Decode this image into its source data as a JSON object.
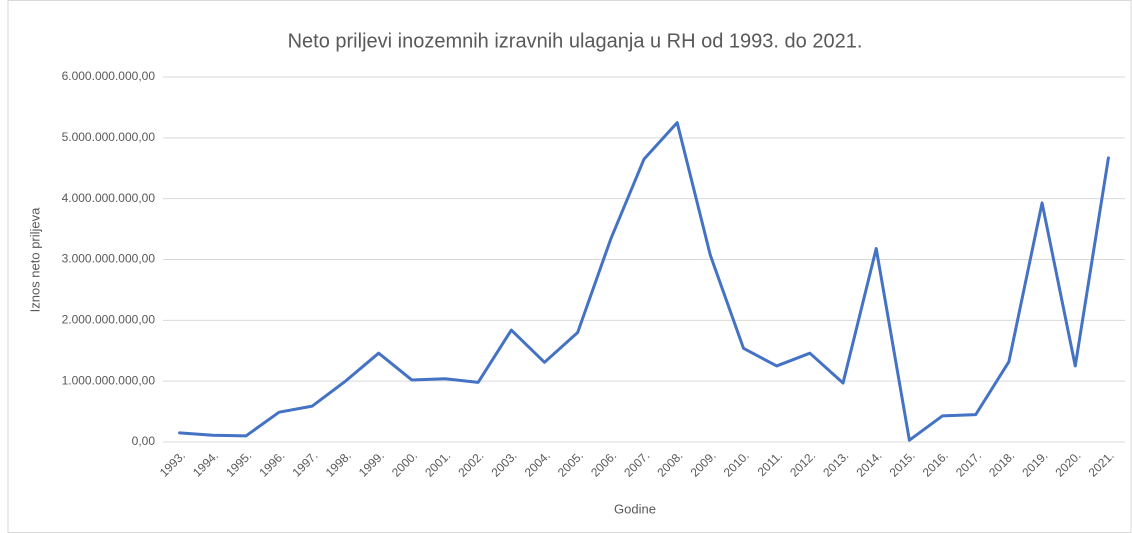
{
  "chart_data": {
    "type": "line",
    "title": "Neto priljevi inozemnih izravnih ulaganja u RH od 1993. do 2021.",
    "x_label": "Godine",
    "y_label": "Iznos neto priljeva",
    "categories": [
      "1993.",
      "1994.",
      "1995.",
      "1996.",
      "1997.",
      "1998.",
      "1999.",
      "2000.",
      "2001.",
      "2002.",
      "2003.",
      "2004.",
      "2005.",
      "2006.",
      "2007.",
      "2008.",
      "2009.",
      "2010.",
      "2011.",
      "2012.",
      "2013.",
      "2014.",
      "2015.",
      "2016.",
      "2017.",
      "2018.",
      "2019.",
      "2020.",
      "2021."
    ],
    "series": [
      {
        "name": "Iznos neto priljeva",
        "color": "#4472c4",
        "values": [
          150000000,
          110000000,
          100000000,
          490000000,
          590000000,
          1000000000,
          1460000000,
          1020000000,
          1040000000,
          980000000,
          1840000000,
          1310000000,
          1800000000,
          3340000000,
          4650000000,
          5250000000,
          3070000000,
          1540000000,
          1250000000,
          1460000000,
          970000000,
          3180000000,
          30000000,
          430000000,
          450000000,
          1320000000,
          3930000000,
          1250000000,
          4670000000
        ]
      }
    ],
    "ylim": [
      0,
      6000000000
    ],
    "yticks": [
      {
        "value": 0,
        "label": "0,00"
      },
      {
        "value": 1000000000,
        "label": "1.000.000.000,00"
      },
      {
        "value": 2000000000,
        "label": "2.000.000.000,00"
      },
      {
        "value": 3000000000,
        "label": "3.000.000.000,00"
      },
      {
        "value": 4000000000,
        "label": "4.000.000.000,00"
      },
      {
        "value": 5000000000,
        "label": "5.000.000.000,00"
      },
      {
        "value": 6000000000,
        "label": "6.000.000.000,00"
      }
    ],
    "grid": true
  }
}
